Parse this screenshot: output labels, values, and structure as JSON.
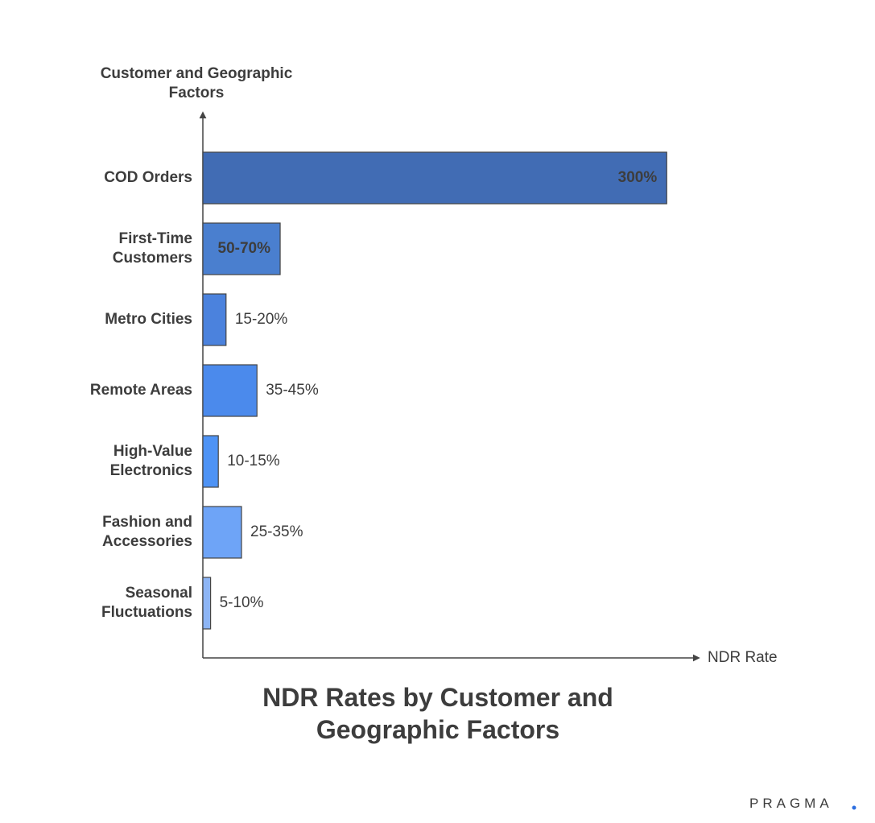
{
  "chart_data": {
    "type": "bar",
    "orientation": "horizontal",
    "title": "NDR Rates by Customer and Geographic Factors",
    "y_label": "Customer and Geographic Factors",
    "x_label": "NDR Rate",
    "categories": [
      "COD Orders",
      "First-Time Customers",
      "Metro Cities",
      "Remote Areas",
      "High-Value Electronics",
      "Fashion and Accessories",
      "Seasonal Fluctuations"
    ],
    "values": [
      300,
      50,
      15,
      35,
      10,
      25,
      5
    ],
    "value_labels": [
      "300%",
      "50-70%",
      "15-20%",
      "35-45%",
      "10-15%",
      "25-35%",
      "5-10%"
    ],
    "colors": [
      "#416cb4",
      "#4a7fcf",
      "#4b82dd",
      "#4b8aec",
      "#4e93f5",
      "#6ea4f7",
      "#8db5f5"
    ],
    "xlim": [
      0,
      316
    ]
  },
  "brand": "PRAGMA"
}
